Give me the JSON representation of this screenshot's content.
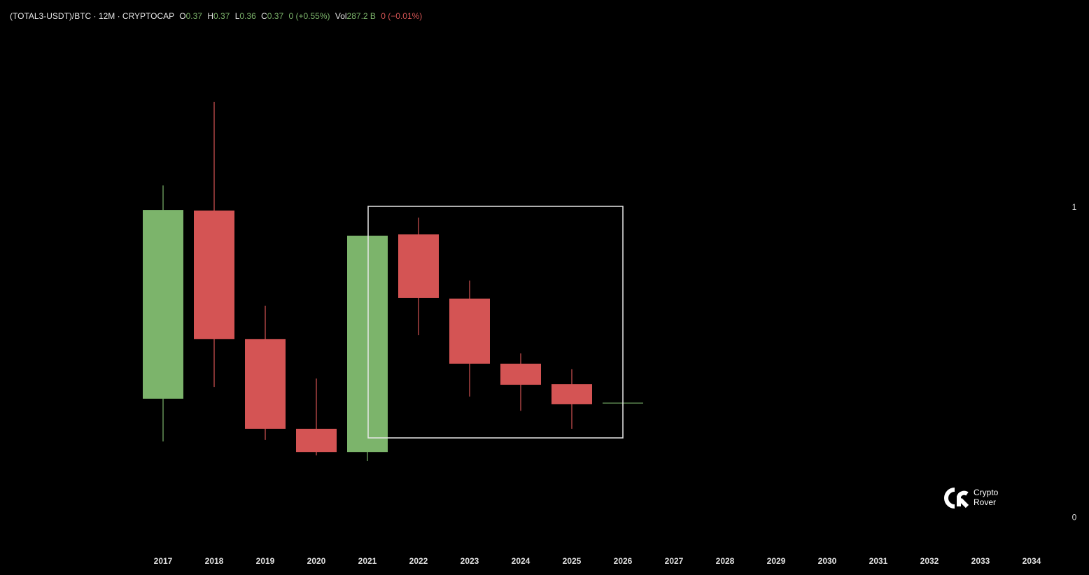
{
  "header": {
    "symbol": "(TOTAL3-USDT)/BTC · 12M · CRYPTOCAP",
    "o_label": "O",
    "o": "0.37",
    "h_label": "H",
    "h": "0.37",
    "l_label": "L",
    "l": "0.36",
    "c_label": "C",
    "c": "0.37",
    "change": "0 (+0.55%)",
    "vol_label": "Vol",
    "vol": "287.2 B",
    "vol_change": "0 (−0.01%)"
  },
  "logo": {
    "line1": "Crypto",
    "line2": "Rover"
  },
  "chart_data": {
    "type": "candlestick",
    "categories": [
      "2017",
      "2018",
      "2019",
      "2020",
      "2021",
      "2022",
      "2023",
      "2024",
      "2025",
      "2026",
      "2027",
      "2028",
      "2029",
      "2030",
      "2031",
      "2032",
      "2033",
      "2034"
    ],
    "open": [
      0.384,
      0.991,
      0.576,
      0.287,
      0.212,
      0.914,
      0.707,
      0.497,
      0.431,
      0.37,
      null,
      null,
      null,
      null,
      null,
      null,
      null,
      null
    ],
    "high": [
      1.072,
      1.341,
      0.684,
      0.449,
      0.91,
      0.968,
      0.765,
      0.53,
      0.479,
      0.37,
      null,
      null,
      null,
      null,
      null,
      null,
      null,
      null
    ],
    "low": [
      0.246,
      0.422,
      0.251,
      0.201,
      0.183,
      0.589,
      0.391,
      0.345,
      0.287,
      0.36,
      null,
      null,
      null,
      null,
      null,
      null,
      null,
      null
    ],
    "close": [
      0.993,
      0.576,
      0.287,
      0.212,
      0.91,
      0.709,
      0.497,
      0.429,
      0.366,
      0.37,
      null,
      null,
      null,
      null,
      null,
      null,
      null,
      null
    ],
    "up_color": "#7cb46b",
    "down_color": "#d45454",
    "ylim": [
      -0.09,
      1.58
    ],
    "yticks": [
      0,
      1
    ]
  }
}
